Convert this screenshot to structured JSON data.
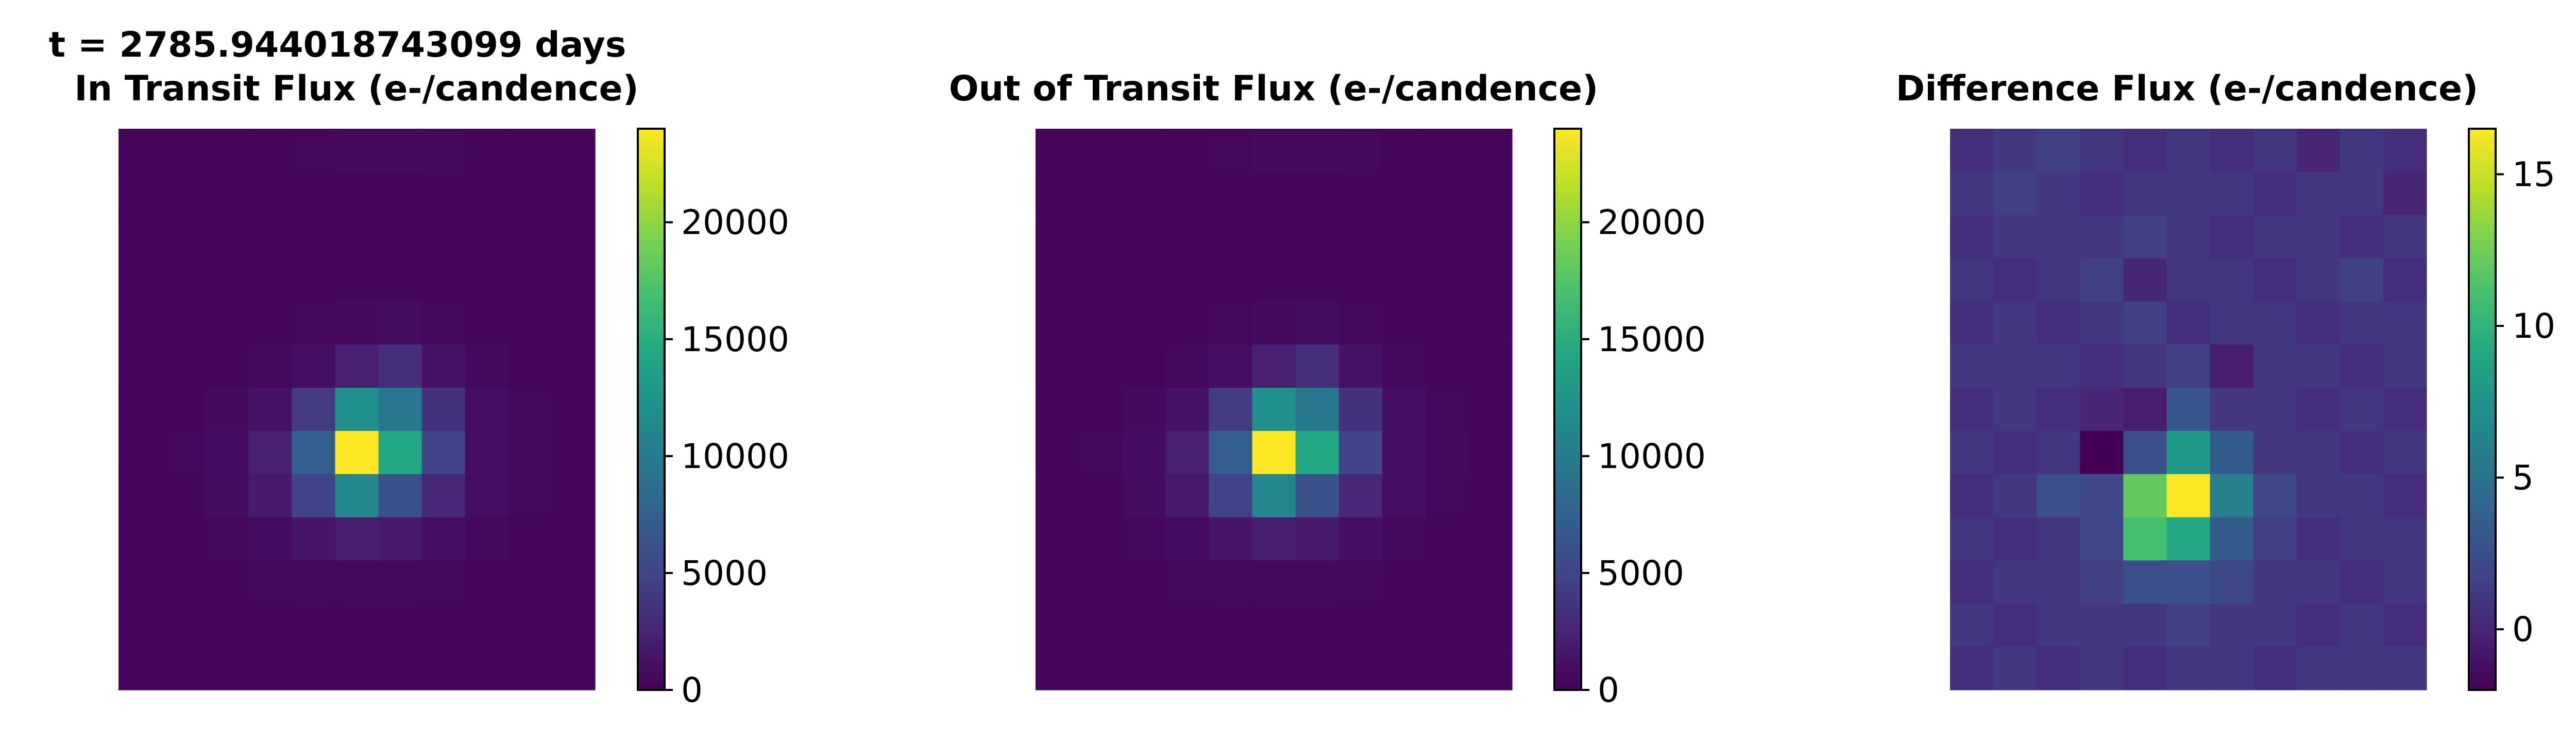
{
  "figure": {
    "suptitle": "t = 2785.944018743099 days"
  },
  "chart_data": [
    {
      "type": "heatmap",
      "title": "In Transit Flux (e-/candence)",
      "colormap": "viridis",
      "axes_visible": false,
      "grid": false,
      "rows": 13,
      "cols": 11,
      "vmin": 0,
      "vmax": 24000,
      "colorbar_ticks": [
        0,
        5000,
        10000,
        15000,
        20000
      ],
      "values": [
        [
          300,
          300,
          300,
          300,
          450,
          600,
          600,
          550,
          300,
          300,
          300
        ],
        [
          300,
          300,
          300,
          300,
          300,
          300,
          300,
          300,
          300,
          300,
          300
        ],
        [
          300,
          300,
          300,
          300,
          300,
          300,
          300,
          300,
          300,
          300,
          300
        ],
        [
          300,
          300,
          300,
          300,
          300,
          300,
          300,
          300,
          300,
          300,
          300
        ],
        [
          300,
          300,
          300,
          300,
          400,
          600,
          700,
          400,
          300,
          300,
          300
        ],
        [
          300,
          300,
          300,
          500,
          900,
          2200,
          3200,
          1200,
          500,
          300,
          300
        ],
        [
          300,
          300,
          600,
          1200,
          4200,
          12000,
          9500,
          3500,
          900,
          400,
          300
        ],
        [
          300,
          400,
          800,
          2200,
          7200,
          24000,
          14500,
          5000,
          1000,
          500,
          300
        ],
        [
          300,
          300,
          700,
          1800,
          4800,
          11000,
          6000,
          2800,
          900,
          400,
          300
        ],
        [
          300,
          300,
          400,
          800,
          1500,
          2000,
          1800,
          1000,
          500,
          300,
          300
        ],
        [
          300,
          300,
          300,
          400,
          500,
          500,
          500,
          400,
          300,
          300,
          300
        ],
        [
          300,
          300,
          300,
          300,
          300,
          300,
          300,
          300,
          300,
          300,
          300
        ],
        [
          300,
          300,
          300,
          300,
          300,
          300,
          300,
          300,
          300,
          300,
          300
        ]
      ]
    },
    {
      "type": "heatmap",
      "title": "Out of Transit Flux (e-/candence)",
      "colormap": "viridis",
      "axes_visible": false,
      "grid": false,
      "rows": 13,
      "cols": 11,
      "vmin": 0,
      "vmax": 24000,
      "colorbar_ticks": [
        0,
        5000,
        10000,
        15000,
        20000
      ],
      "values": [
        [
          300,
          300,
          300,
          300,
          450,
          600,
          600,
          550,
          300,
          300,
          300
        ],
        [
          300,
          300,
          300,
          300,
          300,
          300,
          300,
          300,
          300,
          300,
          300
        ],
        [
          300,
          300,
          300,
          300,
          300,
          300,
          300,
          300,
          300,
          300,
          300
        ],
        [
          300,
          300,
          300,
          300,
          300,
          300,
          300,
          300,
          300,
          300,
          300
        ],
        [
          300,
          300,
          300,
          300,
          400,
          600,
          700,
          400,
          300,
          300,
          300
        ],
        [
          300,
          300,
          300,
          500,
          900,
          2200,
          3200,
          1200,
          500,
          300,
          300
        ],
        [
          300,
          300,
          600,
          1200,
          4200,
          12000,
          9500,
          3500,
          900,
          400,
          300
        ],
        [
          300,
          400,
          800,
          2200,
          7200,
          24000,
          14500,
          5000,
          1000,
          500,
          300
        ],
        [
          300,
          300,
          700,
          1800,
          4800,
          11000,
          6000,
          2800,
          900,
          400,
          300
        ],
        [
          300,
          300,
          400,
          800,
          1500,
          2000,
          1800,
          1000,
          500,
          300,
          300
        ],
        [
          300,
          300,
          300,
          400,
          500,
          500,
          500,
          400,
          300,
          300,
          300
        ],
        [
          300,
          300,
          300,
          300,
          300,
          300,
          300,
          300,
          300,
          300,
          300
        ],
        [
          300,
          300,
          300,
          300,
          300,
          300,
          300,
          300,
          300,
          300,
          300
        ]
      ]
    },
    {
      "type": "heatmap",
      "title": "Difference Flux (e-/candence)",
      "colormap": "viridis",
      "axes_visible": false,
      "grid": false,
      "rows": 13,
      "cols": 11,
      "vmin": -2,
      "vmax": 16.5,
      "colorbar_ticks": [
        0,
        5,
        10,
        15
      ],
      "values": [
        [
          0.5,
          1.0,
          1.5,
          1.0,
          0.5,
          1.0,
          0.5,
          1.0,
          0.0,
          1.0,
          0.5
        ],
        [
          1.0,
          1.5,
          1.0,
          0.5,
          1.0,
          1.0,
          1.0,
          0.5,
          1.0,
          1.0,
          0.0
        ],
        [
          0.5,
          1.0,
          1.0,
          1.0,
          1.5,
          1.0,
          0.5,
          1.0,
          1.0,
          0.5,
          1.0
        ],
        [
          1.0,
          0.5,
          1.0,
          1.5,
          0.0,
          1.0,
          1.0,
          0.5,
          1.0,
          1.5,
          0.5
        ],
        [
          0.5,
          1.0,
          0.5,
          1.0,
          1.5,
          0.5,
          1.0,
          1.0,
          0.5,
          1.0,
          1.0
        ],
        [
          1.0,
          1.0,
          1.0,
          0.5,
          1.0,
          1.5,
          -0.5,
          1.0,
          1.0,
          0.5,
          1.0
        ],
        [
          0.5,
          1.0,
          0.5,
          0.0,
          -0.5,
          3.0,
          1.0,
          1.0,
          0.5,
          1.0,
          0.5
        ],
        [
          1.0,
          0.5,
          1.0,
          -2.0,
          2.5,
          8.0,
          3.5,
          1.0,
          1.0,
          0.5,
          1.0
        ],
        [
          0.5,
          1.0,
          2.5,
          2.0,
          12.0,
          16.5,
          6.0,
          2.0,
          1.0,
          1.0,
          0.5
        ],
        [
          1.0,
          0.5,
          1.0,
          2.0,
          11.0,
          9.0,
          3.5,
          1.5,
          0.5,
          1.0,
          1.0
        ],
        [
          0.5,
          1.0,
          1.0,
          1.5,
          2.5,
          2.5,
          2.0,
          1.0,
          1.0,
          0.5,
          1.0
        ],
        [
          1.0,
          0.5,
          1.0,
          1.0,
          1.0,
          1.5,
          1.0,
          1.0,
          0.5,
          1.0,
          0.5
        ],
        [
          0.5,
          1.0,
          0.5,
          1.0,
          0.5,
          1.0,
          1.0,
          0.5,
          1.0,
          1.0,
          1.0
        ]
      ]
    }
  ]
}
